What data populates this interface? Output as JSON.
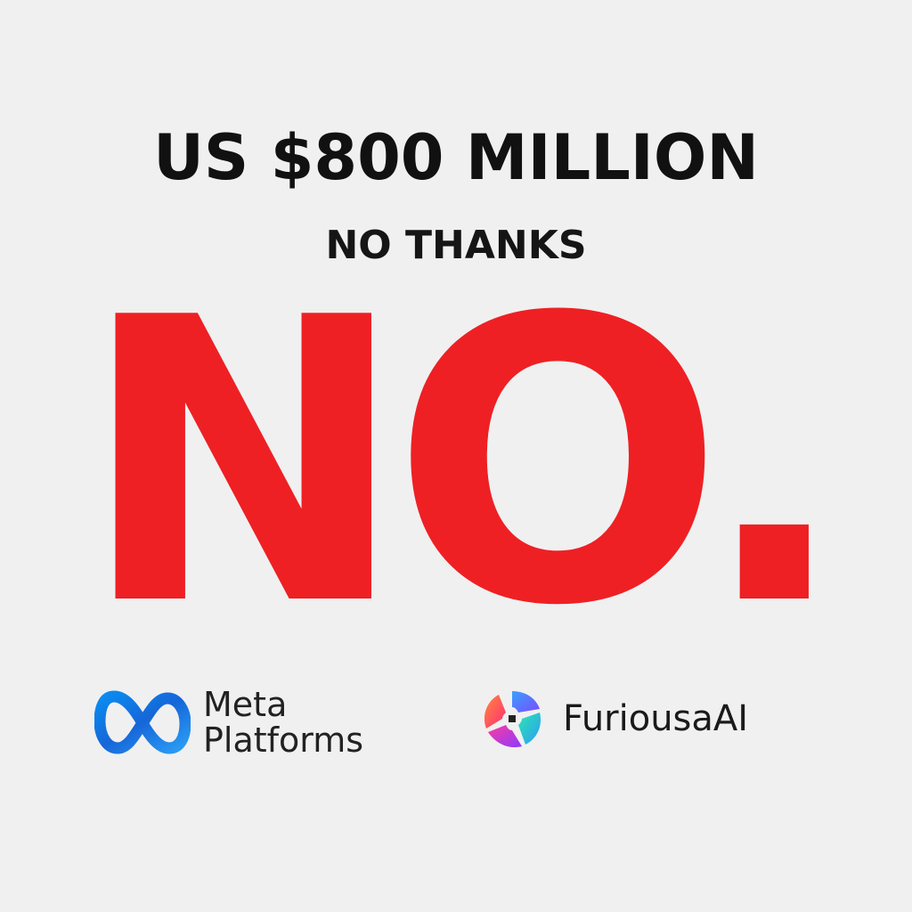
{
  "headline": "US $800 MILLION",
  "subhead": "NO THANKS",
  "big_word": "NO.",
  "colors": {
    "background": "#f0f0f0",
    "accent_red": "#ee2024",
    "text_dark": "#111111",
    "meta_blue": "#1d7ef0"
  },
  "brands": {
    "meta": {
      "icon": "meta-infinity-icon",
      "line1": "Meta",
      "line2": "Platforms"
    },
    "furiosa": {
      "icon": "furiosa-swirl-icon",
      "name": "FuriousaAI"
    }
  }
}
